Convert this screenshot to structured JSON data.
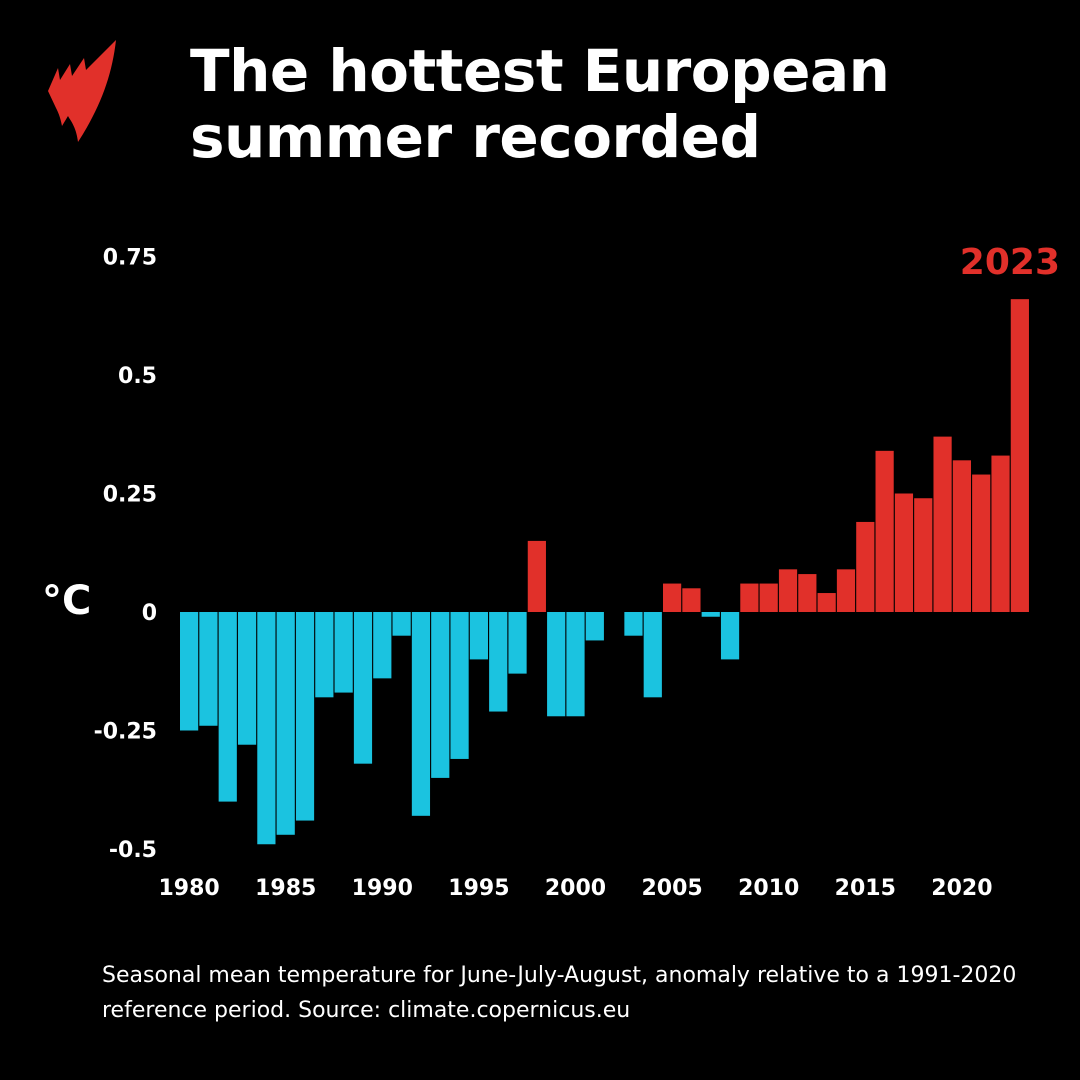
{
  "title": "The hottest European summer recorded",
  "caption": "Seasonal mean temperature for June-July-August, anomaly relative to a 1991-2020 reference period. Source: climate.copernicus.eu",
  "logo": "sbs-logo",
  "colors": {
    "positive": "#e1302a",
    "negative": "#1bc3e0",
    "background": "#000000"
  },
  "chart_data": {
    "type": "bar",
    "title": "The hottest European summer recorded",
    "xlabel": "",
    "ylabel": "°C",
    "ylim": [
      -0.5,
      0.75
    ],
    "yticks": [
      "0.75",
      "0.5",
      "0.25",
      "0",
      "-0.25",
      "-0.5"
    ],
    "xticks": [
      "1980",
      "1985",
      "1990",
      "1995",
      "2000",
      "2005",
      "2010",
      "2015",
      "2020"
    ],
    "annotation": "2023",
    "grid": false,
    "categories": [
      1980,
      1981,
      1982,
      1983,
      1984,
      1985,
      1986,
      1987,
      1988,
      1989,
      1990,
      1991,
      1992,
      1993,
      1994,
      1995,
      1996,
      1997,
      1998,
      1999,
      2000,
      2001,
      2002,
      2003,
      2004,
      2005,
      2006,
      2007,
      2008,
      2009,
      2010,
      2011,
      2012,
      2013,
      2014,
      2015,
      2016,
      2017,
      2018,
      2019,
      2020,
      2021,
      2022,
      2023
    ],
    "values": [
      -0.25,
      -0.24,
      -0.4,
      -0.28,
      -0.49,
      -0.47,
      -0.44,
      -0.18,
      -0.17,
      -0.32,
      -0.14,
      -0.05,
      -0.43,
      -0.35,
      -0.31,
      -0.1,
      -0.21,
      -0.13,
      0.15,
      -0.22,
      -0.22,
      -0.06,
      0.0,
      -0.05,
      -0.18,
      0.06,
      0.05,
      -0.01,
      -0.1,
      0.06,
      0.06,
      0.09,
      0.08,
      0.04,
      0.09,
      0.19,
      0.34,
      0.25,
      0.24,
      0.37,
      0.32,
      0.29,
      0.33,
      0.66
    ]
  }
}
